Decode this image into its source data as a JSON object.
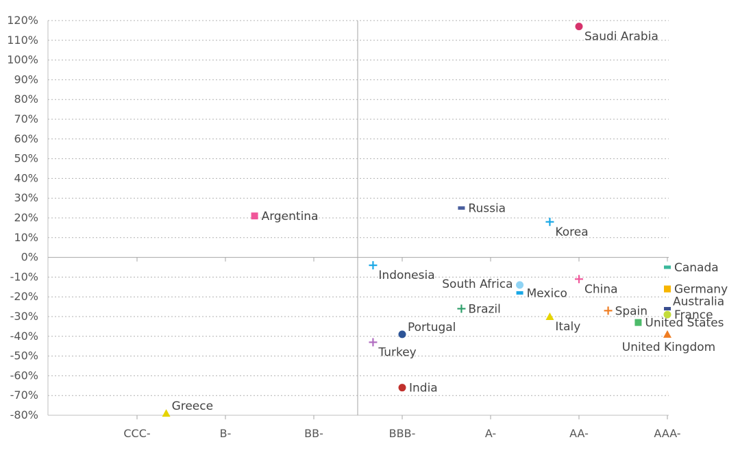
{
  "chart_data": {
    "type": "scatter",
    "title": "",
    "xlabel": "",
    "ylabel": "",
    "x_categories": [
      "CCC-",
      "B-",
      "BB-",
      "BBB-",
      "A-",
      "AA-",
      "AAA-"
    ],
    "y_ticks": [
      120,
      110,
      100,
      90,
      80,
      70,
      60,
      50,
      40,
      30,
      20,
      10,
      0,
      -10,
      -20,
      -30,
      -40,
      -50,
      -60,
      -70,
      -80
    ],
    "y_tick_labels": [
      "120%",
      "110%",
      "100%",
      "90%",
      "80%",
      "70%",
      "60%",
      "50%",
      "40%",
      "30%",
      "20%",
      "10%",
      "0%",
      "-10%",
      "-20%",
      "-30%",
      "-40%",
      "-50%",
      "-60%",
      "-70%",
      "-80%"
    ],
    "ylim": [
      -80,
      120
    ],
    "grid": "horizontal dotted",
    "legend": "none (points labeled directly)",
    "points": [
      {
        "name": "Saudi Arabia",
        "rating": 5.0,
        "y": 117,
        "marker": "circle",
        "color": "#d6336c",
        "label_pos": "below-right"
      },
      {
        "name": "Argentina",
        "rating": 1.33,
        "y": 21,
        "marker": "square",
        "color": "#f0579a",
        "label_pos": "right"
      },
      {
        "name": "Russia",
        "rating": 3.67,
        "y": 25,
        "marker": "dash",
        "color": "#4a5f9e",
        "label_pos": "right"
      },
      {
        "name": "Korea",
        "rating": 4.67,
        "y": 18,
        "marker": "plus",
        "color": "#1aa8e6",
        "label_pos": "below-right"
      },
      {
        "name": "Indonesia",
        "rating": 2.67,
        "y": -4,
        "marker": "plus",
        "color": "#1aa8e6",
        "label_pos": "below-right"
      },
      {
        "name": "South Africa",
        "rating": 4.33,
        "y": -14,
        "marker": "circle",
        "color": "#8fd3f4",
        "label_pos": "left"
      },
      {
        "name": "Mexico",
        "rating": 4.33,
        "y": -18,
        "marker": "dash",
        "color": "#1aa8e6",
        "label_pos": "right"
      },
      {
        "name": "China",
        "rating": 5.0,
        "y": -11,
        "marker": "plus",
        "color": "#f0579a",
        "label_pos": "below-right"
      },
      {
        "name": "Canada",
        "rating": 6.0,
        "y": -5,
        "marker": "dash",
        "color": "#3bb89b",
        "label_pos": "right"
      },
      {
        "name": "Germany",
        "rating": 6.0,
        "y": -16,
        "marker": "square",
        "color": "#f7b500",
        "label_pos": "right"
      },
      {
        "name": "Australia",
        "rating": 6.0,
        "y": -26,
        "marker": "dash",
        "color": "#3a4f8f",
        "label_pos": "above-right"
      },
      {
        "name": "France",
        "rating": 6.0,
        "y": -29,
        "marker": "circle",
        "color": "#c3dc3c",
        "label_pos": "right"
      },
      {
        "name": "United States",
        "rating": 5.67,
        "y": -33,
        "marker": "square",
        "color": "#4dbb6a",
        "label_pos": "right"
      },
      {
        "name": "United Kingdom",
        "rating": 6.0,
        "y": -39,
        "marker": "triangle",
        "color": "#ef7d22",
        "label_pos": "below"
      },
      {
        "name": "Spain",
        "rating": 5.33,
        "y": -27,
        "marker": "plus",
        "color": "#ef7d22",
        "label_pos": "right"
      },
      {
        "name": "Italy",
        "rating": 4.67,
        "y": -30,
        "marker": "triangle",
        "color": "#e6d400",
        "label_pos": "below-right"
      },
      {
        "name": "Brazil",
        "rating": 3.67,
        "y": -26,
        "marker": "plus",
        "color": "#2e9e6a",
        "label_pos": "right"
      },
      {
        "name": "Portugal",
        "rating": 3.0,
        "y": -39,
        "marker": "circle",
        "color": "#2d5597",
        "label_pos": "above-right"
      },
      {
        "name": "Turkey",
        "rating": 2.67,
        "y": -43,
        "marker": "plus",
        "color": "#b06cc0",
        "label_pos": "below-right"
      },
      {
        "name": "India",
        "rating": 3.0,
        "y": -66,
        "marker": "circle",
        "color": "#c0302c",
        "label_pos": "right"
      },
      {
        "name": "Greece",
        "rating": 0.33,
        "y": -79,
        "marker": "triangle",
        "color": "#e6d400",
        "label_pos": "above-right"
      }
    ]
  }
}
